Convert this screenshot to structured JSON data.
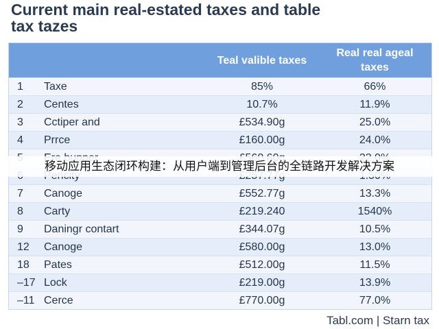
{
  "title": {
    "line1": "Current main real-estated taxes and table",
    "line2": "tax tazes"
  },
  "table": {
    "headers": [
      "",
      "",
      "Teal valible taxes",
      "Real real ageal taxes"
    ],
    "rows": [
      {
        "num": "1",
        "name": "Taxe",
        "col_a": "85%",
        "col_b": "66%"
      },
      {
        "num": "2",
        "name": "Centes",
        "col_a": "10.7%",
        "col_b": "11.9%"
      },
      {
        "num": "3",
        "name": "Cctiper and",
        "col_a": "£534.90g",
        "col_b": "25.0%"
      },
      {
        "num": "4",
        "name": "Prrce",
        "col_a": "£160.00g",
        "col_b": "24.0%"
      },
      {
        "num": "5",
        "name": "Ere bupper",
        "col_a": "£560.60g",
        "col_b": "22.0%"
      },
      {
        "num": "6",
        "name": "Pencity",
        "col_a": "£257.77g",
        "col_b": "1.50%"
      },
      {
        "num": "7",
        "name": "Canoge",
        "col_a": "£552.77g",
        "col_b": "13.3%"
      },
      {
        "num": "8",
        "name": "Carty",
        "col_a": "£219.240",
        "col_b": "1540%"
      },
      {
        "num": "9",
        "name": "Daningr contart",
        "col_a": "£344.07g",
        "col_b": "10.5%"
      },
      {
        "num": "12",
        "name": "Canoge",
        "col_a": "£580.00g",
        "col_b": "13.0%"
      },
      {
        "num": "18",
        "name": "Pates",
        "col_a": "£512.00g",
        "col_b": "11.5%"
      },
      {
        "num": "–17",
        "name": "Lock",
        "col_a": "£219.00g",
        "col_b": "13.9%"
      },
      {
        "num": "–11",
        "name": "Cerce",
        "col_a": "£770.00g",
        "col_b": "77.0%"
      }
    ]
  },
  "overlay_caption": "移动应用生态闭环构建：从用户端到管理后台的全链路开发解决方案",
  "footer": "Tabl.com | Starn tax",
  "colors": {
    "header_bg": "#6f9fdc",
    "row_light": "#f2f6fc",
    "row_dark": "#e4edf9",
    "text": "#23354c"
  }
}
